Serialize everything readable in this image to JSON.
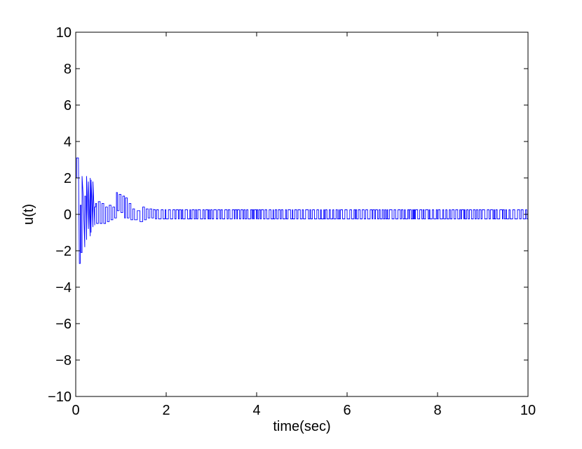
{
  "chart_data": {
    "type": "line",
    "title": "",
    "xlabel": "time(sec)",
    "ylabel": "u(t)",
    "xlim": [
      0,
      10
    ],
    "ylim": [
      -10,
      10
    ],
    "xticks": [
      0,
      2,
      4,
      6,
      8,
      10
    ],
    "yticks": [
      -10,
      -8,
      -6,
      -4,
      -2,
      0,
      2,
      4,
      6,
      8,
      10
    ],
    "xtick_labels": [
      "0",
      "2",
      "4",
      "6",
      "8",
      "10"
    ],
    "ytick_labels": [
      "−10",
      "−8",
      "−6",
      "−4",
      "−2",
      "0",
      "2",
      "4",
      "6",
      "8",
      "10"
    ],
    "grid": false,
    "legend": "none",
    "series": [
      {
        "color": "#0000ff",
        "x": [
          0,
          0.02,
          0.02,
          0.04,
          0.06,
          0.08,
          0.1,
          0.1,
          0.12,
          0.12,
          0.14,
          0.14,
          0.16,
          0.2,
          0.2,
          0.22,
          0.24,
          0.24,
          0.28,
          0.28,
          0.32,
          0.32,
          0.34,
          0.34,
          0.38,
          0.38,
          0.42,
          0.42,
          0.44,
          0.44,
          0.46,
          0.46,
          0.5,
          0.5,
          0.54,
          0.54,
          0.58,
          0.58,
          0.62,
          0.62,
          0.66,
          0.66,
          0.7,
          0.7,
          0.74,
          0.74,
          0.78,
          0.78,
          0.82,
          0.82,
          0.86,
          0.86,
          0.9,
          0.9,
          0.92,
          0.92,
          0.96,
          0.96,
          1.0,
          1.0,
          1.04,
          1.04,
          1.08,
          1.08,
          1.1,
          1.1,
          1.14,
          1.14,
          1.18,
          1.18,
          1.22,
          1.22,
          1.26,
          1.26,
          1.3,
          1.3,
          1.36,
          1.36,
          1.42,
          1.42,
          1.48,
          1.48,
          1.52,
          1.52,
          1.56,
          1.56,
          1.6,
          1.6,
          1.64,
          1.64,
          1.68,
          1.68,
          1.72,
          1.72
        ],
        "y": [
          2.0,
          2.0,
          3.1,
          3.1,
          3.1,
          -2.7,
          -2.7,
          0.5,
          0.5,
          -2.1,
          -2.1,
          2.1,
          1.2,
          -1.8,
          1.0,
          1.0,
          -1.4,
          2.1,
          -0.8,
          1.8,
          -1.2,
          2.0,
          -1.0,
          1.9,
          -0.7,
          1.8,
          -0.6,
          0.4,
          0.4,
          0.6,
          0.6,
          -0.5,
          -0.5,
          0.7,
          0.7,
          -0.5,
          -0.5,
          0.6,
          0.6,
          -0.5,
          -0.5,
          0.4,
          0.4,
          -0.4,
          -0.4,
          0.5,
          0.5,
          -0.3,
          -0.3,
          0.4,
          0.4,
          -0.2,
          -0.2,
          1.2,
          1.2,
          0.2,
          0.2,
          1.1,
          1.1,
          0.1,
          0.1,
          1.0,
          1.0,
          -0.2,
          -0.2,
          0.9,
          0.9,
          -0.2,
          -0.2,
          0.6,
          0.6,
          -0.3,
          -0.3,
          0.3,
          0.3,
          -0.3,
          -0.3,
          0.2,
          0.2,
          -0.4,
          -0.4,
          0.4,
          0.4,
          -0.3,
          -0.3,
          0.3,
          0.3,
          -0.2,
          -0.2,
          0.3,
          0.3,
          -0.2,
          -0.2,
          0.3
        ]
      }
    ],
    "steady_state": {
      "x_start": 1.72,
      "x_end": 10,
      "high": 0.25,
      "low": -0.25,
      "mean_dwell": 0.035
    }
  }
}
